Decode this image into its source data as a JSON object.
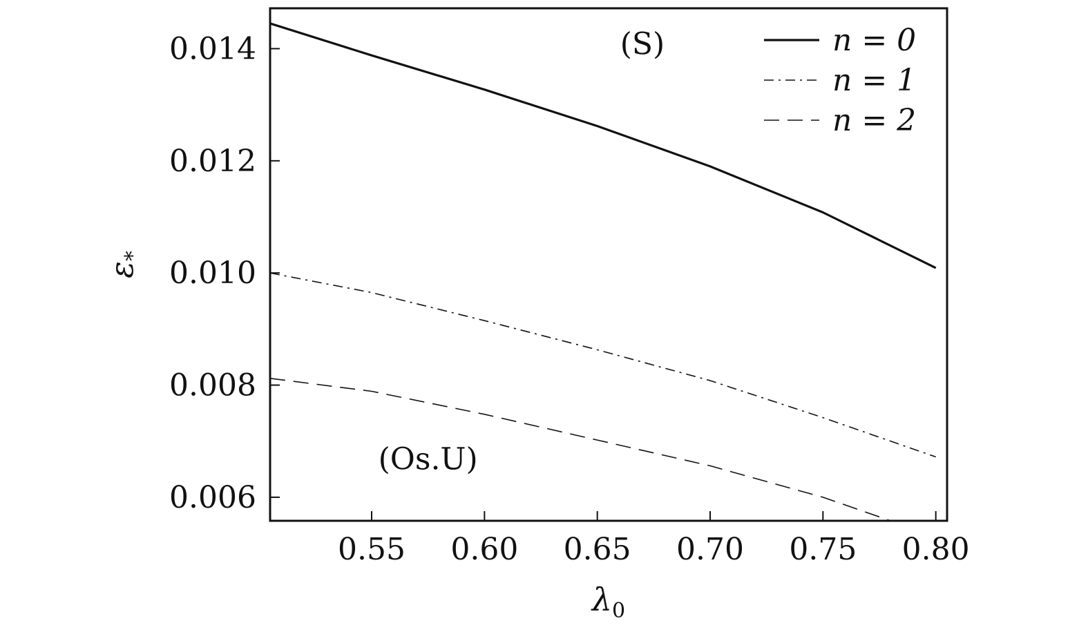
{
  "chart_data": {
    "type": "line",
    "xlabel": "λ",
    "xlabel_sub": "0",
    "ylabel": "ε",
    "ylabel_sub": "*",
    "xlim": [
      0.505,
      0.805
    ],
    "ylim": [
      0.00558,
      0.01472
    ],
    "xticks": [
      0.55,
      0.6,
      0.65,
      0.7,
      0.75,
      0.8
    ],
    "xtick_labels": [
      "0.55",
      "0.60",
      "0.65",
      "0.70",
      "0.75",
      "0.80"
    ],
    "yticks": [
      0.006,
      0.008,
      0.01,
      0.012,
      0.014
    ],
    "ytick_labels": [
      "0.006",
      "0.008",
      "0.010",
      "0.012",
      "0.014"
    ],
    "grid": false,
    "legend_position": "top-right",
    "annotations": [
      {
        "text": "(S)",
        "x": 0.67,
        "y": 0.0139
      },
      {
        "text": "(Os.U)",
        "x": 0.575,
        "y": 0.0065
      }
    ],
    "series": [
      {
        "name": "n = 0",
        "style": "solid",
        "x": [
          0.505,
          0.55,
          0.6,
          0.65,
          0.7,
          0.75,
          0.8
        ],
        "y": [
          0.01445,
          0.01388,
          0.01327,
          0.01262,
          0.0119,
          0.01108,
          0.01009
        ]
      },
      {
        "name": "n = 1",
        "style": "dashdot",
        "x": [
          0.505,
          0.55,
          0.6,
          0.65,
          0.7,
          0.75,
          0.8
        ],
        "y": [
          0.01,
          0.00965,
          0.00915,
          0.00863,
          0.00808,
          0.00742,
          0.00672
        ]
      },
      {
        "name": "n = 2",
        "style": "dashed",
        "x": [
          0.505,
          0.55,
          0.6,
          0.65,
          0.7,
          0.75,
          0.78
        ],
        "y": [
          0.00812,
          0.00789,
          0.00748,
          0.00702,
          0.00656,
          0.006,
          0.00558
        ]
      }
    ]
  }
}
